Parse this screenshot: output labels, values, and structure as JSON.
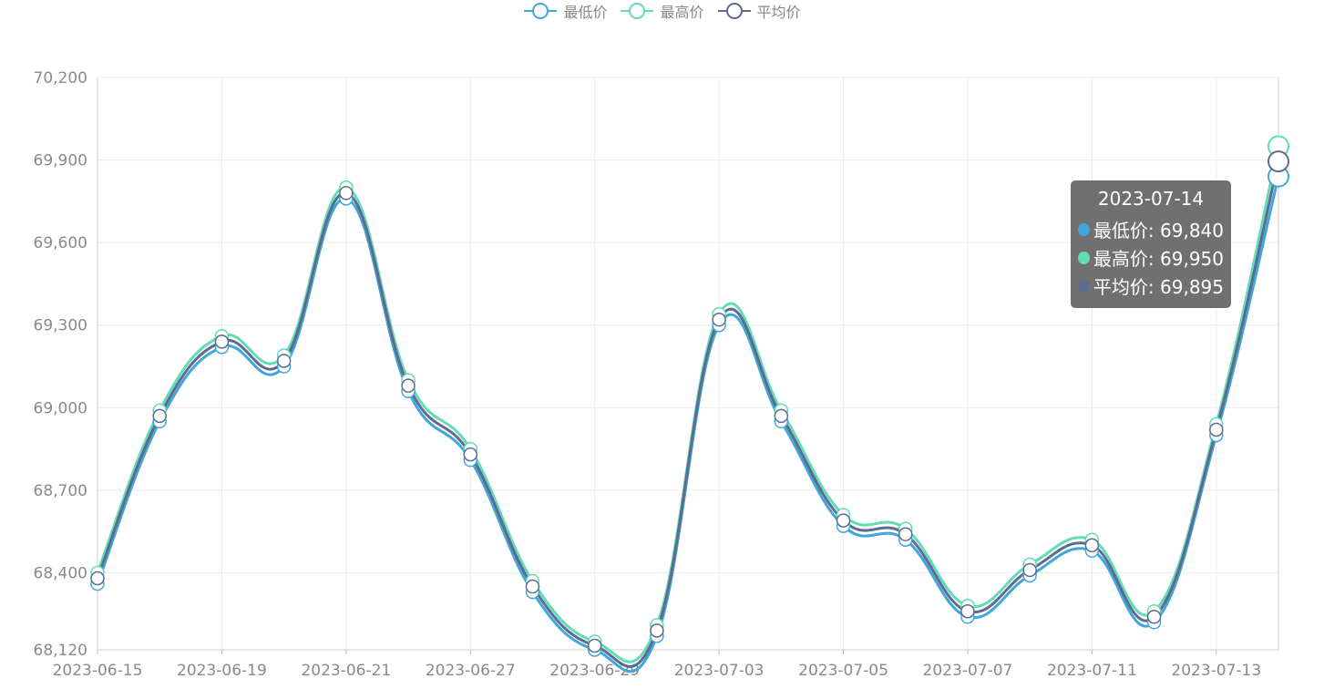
{
  "legend": [
    {
      "name": "最低价",
      "color": "#3fa7dc"
    },
    {
      "name": "最高价",
      "color": "#62dcb6"
    },
    {
      "name": "平均价",
      "color": "#5e6b8f"
    }
  ],
  "tooltip": {
    "title": "2023-07-14",
    "rows": [
      {
        "label": "最低价: 69,840",
        "color": "#3fa7dc"
      },
      {
        "label": "最高价: 69,950",
        "color": "#62dcb6"
      },
      {
        "label": "平均价: 69,895",
        "color": "#5e6b8f"
      }
    ]
  },
  "chart_data": {
    "type": "line",
    "smooth": true,
    "grid": true,
    "legend_position": "top-center",
    "x": [
      "2023-06-15",
      "2023-06-16",
      "2023-06-19",
      "2023-06-20",
      "2023-06-21",
      "2023-06-26",
      "2023-06-27",
      "2023-06-28",
      "2023-06-29",
      "2023-06-30",
      "2023-07-03",
      "2023-07-04",
      "2023-07-05",
      "2023-07-06",
      "2023-07-07",
      "2023-07-10",
      "2023-07-11",
      "2023-07-12",
      "2023-07-13",
      "2023-07-14"
    ],
    "x_tick_labels": [
      "2023-06-15",
      "2023-06-19",
      "2023-06-21",
      "2023-06-27",
      "2023-06-29",
      "2023-07-03",
      "2023-07-05",
      "2023-07-07",
      "2023-07-11",
      "2023-07-13"
    ],
    "y_ticks": [
      68120,
      68400,
      68700,
      69000,
      69300,
      69600,
      69900,
      70200
    ],
    "ylim": [
      68120,
      70200
    ],
    "series": [
      {
        "name": "最低价",
        "color": "#3fa7dc",
        "values": [
          68360,
          68950,
          69220,
          69150,
          69760,
          69060,
          68810,
          68330,
          68120,
          68170,
          69300,
          68950,
          68570,
          68520,
          68240,
          68390,
          68480,
          68220,
          68900,
          69840
        ]
      },
      {
        "name": "最高价",
        "color": "#62dcb6",
        "values": [
          68400,
          68990,
          69260,
          69190,
          69800,
          69100,
          68850,
          68370,
          68150,
          68210,
          69340,
          68990,
          68610,
          68560,
          68280,
          68430,
          68520,
          68260,
          68940,
          69950
        ]
      },
      {
        "name": "平均价",
        "color": "#5e6b8f",
        "values": [
          68380,
          68970,
          69240,
          69170,
          69780,
          69080,
          68830,
          68350,
          68135,
          68190,
          69320,
          68970,
          68590,
          68540,
          68260,
          68410,
          68500,
          68240,
          68920,
          69895
        ]
      }
    ],
    "highlight_index": 19
  }
}
